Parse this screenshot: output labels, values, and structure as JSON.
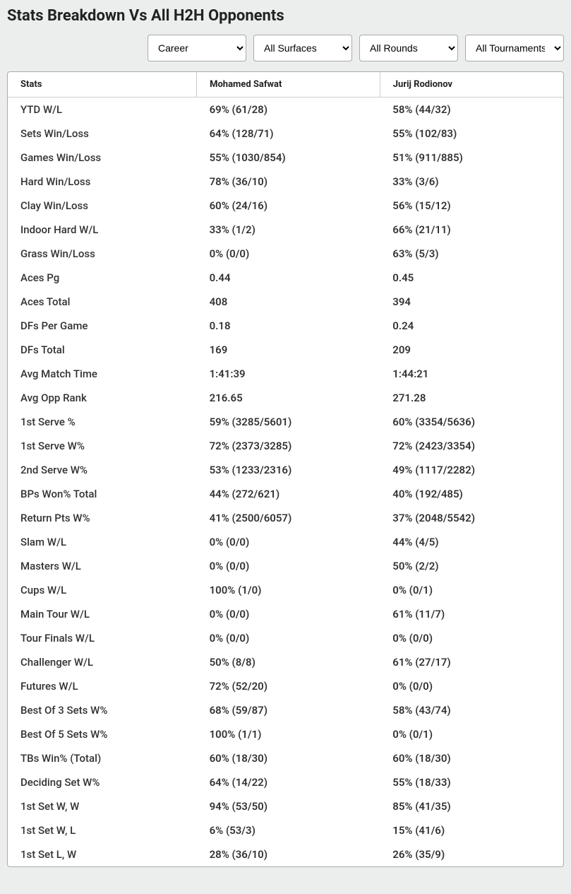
{
  "title": "Stats Breakdown Vs All H2H Opponents",
  "filters": {
    "period": "Career",
    "surface": "All Surfaces",
    "round": "All Rounds",
    "tournament": "All Tournaments"
  },
  "columns": {
    "stats": "Stats",
    "player1": "Mohamed Safwat",
    "player2": "Jurij Rodionov"
  },
  "rows": [
    {
      "label": "YTD W/L",
      "p1": "69% (61/28)",
      "p2": "58% (44/32)"
    },
    {
      "label": "Sets Win/Loss",
      "p1": "64% (128/71)",
      "p2": "55% (102/83)"
    },
    {
      "label": "Games Win/Loss",
      "p1": "55% (1030/854)",
      "p2": "51% (911/885)"
    },
    {
      "label": "Hard Win/Loss",
      "p1": "78% (36/10)",
      "p2": "33% (3/6)"
    },
    {
      "label": "Clay Win/Loss",
      "p1": "60% (24/16)",
      "p2": "56% (15/12)"
    },
    {
      "label": "Indoor Hard W/L",
      "p1": "33% (1/2)",
      "p2": "66% (21/11)"
    },
    {
      "label": "Grass Win/Loss",
      "p1": "0% (0/0)",
      "p2": "63% (5/3)"
    },
    {
      "label": "Aces Pg",
      "p1": "0.44",
      "p2": "0.45"
    },
    {
      "label": "Aces Total",
      "p1": "408",
      "p2": "394"
    },
    {
      "label": "DFs Per Game",
      "p1": "0.18",
      "p2": "0.24"
    },
    {
      "label": "DFs Total",
      "p1": "169",
      "p2": "209"
    },
    {
      "label": "Avg Match Time",
      "p1": "1:41:39",
      "p2": "1:44:21"
    },
    {
      "label": "Avg Opp Rank",
      "p1": "216.65",
      "p2": "271.28"
    },
    {
      "label": "1st Serve %",
      "p1": "59% (3285/5601)",
      "p2": "60% (3354/5636)"
    },
    {
      "label": "1st Serve W%",
      "p1": "72% (2373/3285)",
      "p2": "72% (2423/3354)"
    },
    {
      "label": "2nd Serve W%",
      "p1": "53% (1233/2316)",
      "p2": "49% (1117/2282)"
    },
    {
      "label": "BPs Won% Total",
      "p1": "44% (272/621)",
      "p2": "40% (192/485)"
    },
    {
      "label": "Return Pts W%",
      "p1": "41% (2500/6057)",
      "p2": "37% (2048/5542)"
    },
    {
      "label": "Slam W/L",
      "p1": "0% (0/0)",
      "p2": "44% (4/5)"
    },
    {
      "label": "Masters W/L",
      "p1": "0% (0/0)",
      "p2": "50% (2/2)"
    },
    {
      "label": "Cups W/L",
      "p1": "100% (1/0)",
      "p2": "0% (0/1)"
    },
    {
      "label": "Main Tour W/L",
      "p1": "0% (0/0)",
      "p2": "61% (11/7)"
    },
    {
      "label": "Tour Finals W/L",
      "p1": "0% (0/0)",
      "p2": "0% (0/0)"
    },
    {
      "label": "Challenger W/L",
      "p1": "50% (8/8)",
      "p2": "61% (27/17)"
    },
    {
      "label": "Futures W/L",
      "p1": "72% (52/20)",
      "p2": "0% (0/0)"
    },
    {
      "label": "Best Of 3 Sets W%",
      "p1": "68% (59/87)",
      "p2": "58% (43/74)"
    },
    {
      "label": "Best Of 5 Sets W%",
      "p1": "100% (1/1)",
      "p2": "0% (0/1)"
    },
    {
      "label": "TBs Win% (Total)",
      "p1": "60% (18/30)",
      "p2": "60% (18/30)"
    },
    {
      "label": "Deciding Set W%",
      "p1": "64% (14/22)",
      "p2": "55% (18/33)"
    },
    {
      "label": "1st Set W, W",
      "p1": "94% (53/50)",
      "p2": "85% (41/35)"
    },
    {
      "label": "1st Set W, L",
      "p1": "6% (53/3)",
      "p2": "15% (41/6)"
    },
    {
      "label": "1st Set L, W",
      "p1": "28% (36/10)",
      "p2": "26% (35/9)"
    }
  ]
}
